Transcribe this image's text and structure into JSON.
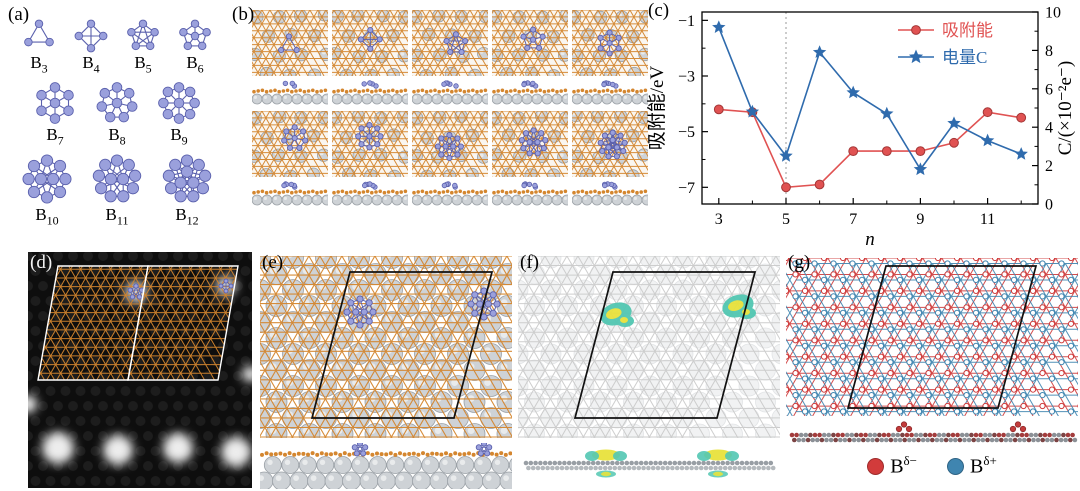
{
  "panels": {
    "a": {
      "label": "(a)",
      "rows": [
        4,
        3,
        3
      ],
      "clusters": [
        {
          "symbol": "B",
          "sub": "3",
          "n": 3
        },
        {
          "symbol": "B",
          "sub": "4",
          "n": 4
        },
        {
          "symbol": "B",
          "sub": "5",
          "n": 5
        },
        {
          "symbol": "B",
          "sub": "6",
          "n": 6
        },
        {
          "symbol": "B",
          "sub": "7",
          "n": 7
        },
        {
          "symbol": "B",
          "sub": "8",
          "n": 8
        },
        {
          "symbol": "B",
          "sub": "9",
          "n": 9
        },
        {
          "symbol": "B",
          "sub": "10",
          "n": 10
        },
        {
          "symbol": "B",
          "sub": "11",
          "n": 11
        },
        {
          "symbol": "B",
          "sub": "12",
          "n": 12
        }
      ]
    },
    "b": {
      "label": "(b)",
      "tiles": 10,
      "columns": 5
    },
    "c": {
      "label": "(c)"
    },
    "d": {
      "label": "(d)"
    },
    "e": {
      "label": "(e)"
    },
    "f": {
      "label": "(f)"
    },
    "g": {
      "label": "(g)",
      "legend": [
        {
          "symbol": "B",
          "sup": "δ−",
          "color": "#d23b3b"
        },
        {
          "symbol": "B",
          "sup": "δ+",
          "color": "#3f85b0"
        }
      ]
    }
  },
  "chart_data": {
    "type": "line",
    "x": [
      3,
      4,
      5,
      6,
      7,
      8,
      9,
      10,
      11,
      12
    ],
    "series": [
      {
        "name": "吸附能",
        "axis": "left",
        "color": "#e05252",
        "marker": "circle",
        "values": [
          -4.2,
          -4.3,
          -7.0,
          -6.9,
          -5.7,
          -5.7,
          -5.7,
          -5.4,
          -4.3,
          -4.5
        ]
      },
      {
        "name": "电量C",
        "axis": "right",
        "color": "#2f6bad",
        "marker": "star",
        "values": [
          9.2,
          4.8,
          2.5,
          7.9,
          5.8,
          4.7,
          1.8,
          4.2,
          3.3,
          2.6
        ]
      }
    ],
    "xlabel": "n",
    "ylabel_left": "吸附能/eV",
    "ylabel_right": "C/(×10⁻²e⁻)",
    "xticks": [
      3,
      5,
      7,
      9,
      11
    ],
    "xticks_minor": [
      4,
      6,
      8,
      10,
      12
    ],
    "yticks_left": [
      -1,
      -3,
      -5,
      -7
    ],
    "yticks_left_minor": [
      -2,
      -4,
      -6
    ],
    "yticks_right": [
      0,
      2,
      4,
      6,
      8,
      10
    ],
    "yticks_right_minor": [
      1,
      3,
      5,
      7,
      9
    ],
    "xlim": [
      2.5,
      12.5
    ],
    "ylim_left": [
      -7.6,
      -0.7
    ],
    "ylim_right": [
      0,
      10
    ],
    "vline_x": 5,
    "grid": false,
    "legend_position": "top-right"
  },
  "colors": {
    "background": "#ffffff",
    "borophene_orange": "#d4862f",
    "boron_purple_fill": "#9aa0dc",
    "boron_purple_stroke": "#5b61ad",
    "silver_fill": "#ced2d6",
    "silver_stroke": "#9aa0a6",
    "series_red": "#e05252",
    "series_blue": "#2f6bad",
    "stm_background": "#0e0e0e",
    "isosurface_cyan": "#52c7b2",
    "isosurface_yellow": "#e8e23c",
    "lattice_red": "#cf3a3a",
    "lattice_blue": "#3f85b0"
  }
}
